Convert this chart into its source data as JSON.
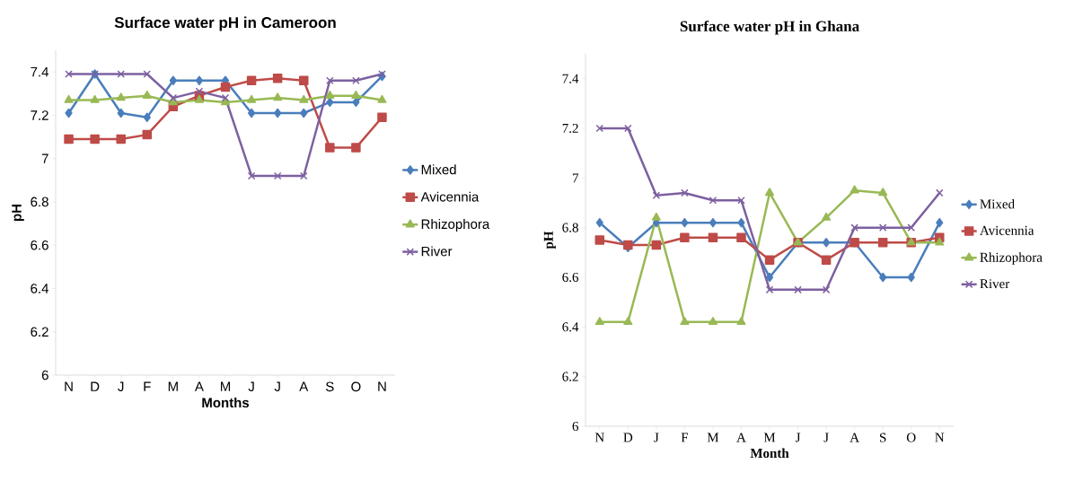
{
  "chart_data": [
    {
      "type": "line",
      "title": "Surface water pH in Cameroon",
      "xlabel": "Months",
      "ylabel": "pH",
      "categories": [
        "N",
        "D",
        "J",
        "F",
        "M",
        "A",
        "M",
        "J",
        "J",
        "A",
        "S",
        "O",
        "N"
      ],
      "ylim": [
        6,
        7.5
      ],
      "yticks": [
        6,
        6.2,
        6.4,
        6.6,
        6.8,
        7,
        7.2,
        7.4
      ],
      "legend": "right",
      "line_style": "solid",
      "series": [
        {
          "name": "Mixed",
          "color": "#4a7ebb",
          "marker": "diamond",
          "values": [
            7.21,
            7.39,
            7.21,
            7.19,
            7.36,
            7.36,
            7.36,
            7.21,
            7.21,
            7.21,
            7.26,
            7.26,
            7.38
          ]
        },
        {
          "name": "Avicennia",
          "color": "#be4b48",
          "marker": "square",
          "values": [
            7.09,
            7.09,
            7.09,
            7.11,
            7.24,
            7.29,
            7.33,
            7.36,
            7.37,
            7.36,
            7.05,
            7.05,
            7.19
          ]
        },
        {
          "name": "Rhizophora",
          "color": "#98b954",
          "marker": "triangle",
          "values": [
            7.27,
            7.27,
            7.28,
            7.29,
            7.26,
            7.27,
            7.26,
            7.27,
            7.28,
            7.27,
            7.29,
            7.29,
            7.27
          ]
        },
        {
          "name": "River",
          "color": "#7d60a0",
          "marker": "cross",
          "values": [
            7.39,
            7.39,
            7.39,
            7.39,
            7.28,
            7.31,
            7.28,
            6.92,
            6.92,
            6.92,
            7.36,
            7.36,
            7.39
          ]
        }
      ]
    },
    {
      "type": "line",
      "title": "Surface water pH in Ghana",
      "xlabel": "Month",
      "ylabel": "pH",
      "categories": [
        "N",
        "D",
        "J",
        "F",
        "M",
        "A",
        "M",
        "J",
        "J",
        "A",
        "S",
        "O",
        "N"
      ],
      "ylim": [
        6,
        7.5
      ],
      "yticks": [
        6,
        6.2,
        6.4,
        6.6,
        6.8,
        7,
        7.2,
        7.4
      ],
      "legend": "right",
      "line_style": "solid",
      "series": [
        {
          "name": "Mixed",
          "color": "#4a7ebb",
          "marker": "diamond",
          "values": [
            6.82,
            6.72,
            6.82,
            6.82,
            6.82,
            6.82,
            6.6,
            6.74,
            6.74,
            6.74,
            6.6,
            6.6,
            6.82
          ]
        },
        {
          "name": "Avicennia",
          "color": "#be4b48",
          "marker": "square",
          "values": [
            6.75,
            6.73,
            6.73,
            6.76,
            6.76,
            6.76,
            6.67,
            6.74,
            6.67,
            6.74,
            6.74,
            6.74,
            6.76
          ]
        },
        {
          "name": "Rhizophora",
          "color": "#98b954",
          "marker": "triangle",
          "values": [
            6.42,
            6.42,
            6.84,
            6.42,
            6.42,
            6.42,
            6.94,
            6.74,
            6.84,
            6.95,
            6.94,
            6.74,
            6.74
          ]
        },
        {
          "name": "River",
          "color": "#7d60a0",
          "marker": "cross",
          "values": [
            7.2,
            7.2,
            6.93,
            6.94,
            6.91,
            6.91,
            6.55,
            6.55,
            6.55,
            6.8,
            6.8,
            6.8,
            6.94
          ]
        }
      ]
    }
  ]
}
